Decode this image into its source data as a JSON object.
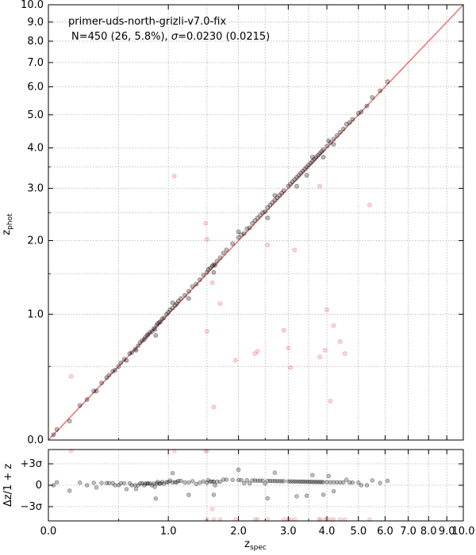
{
  "chart_data": [
    {
      "type": "scatter",
      "annotation": {
        "line1": "primer-uds-north-grizli-v7.0-fix",
        "line2": "N=450 (26,  5.8%), σ=0.0230 (0.0215)"
      },
      "xlabel": {
        "main": "z",
        "sub": "spec"
      },
      "ylabel": {
        "main": "z",
        "sub": "phot"
      },
      "scale": "log(1+z)",
      "xlim": [
        0.0,
        10.0
      ],
      "ylim": [
        0.0,
        10.0
      ],
      "major_ticks": [
        0.0,
        1.0,
        2.0,
        3.0,
        4.0,
        5.0,
        6.0,
        7.0,
        8.0,
        9.0,
        10.0
      ],
      "major_tick_labels": [
        "0.0",
        "1.0",
        "2.0",
        "3.0",
        "4.0",
        "5.0",
        "6.0",
        "7.0",
        "8.0",
        "9.0",
        "10.0"
      ],
      "minor_ticks": [
        0.5,
        1.5,
        2.5,
        3.5
      ],
      "grid": true,
      "one_to_one_line": {
        "color": "#f07070",
        "from": 0.0,
        "to": 10.0
      },
      "series": [
        {
          "marker_color": "#000000",
          "points": [
            [
              0.03,
              0.03
            ],
            [
              0.05,
              0.06
            ],
            [
              0.13,
              0.11
            ],
            [
              0.2,
              0.21
            ],
            [
              0.25,
              0.25
            ],
            [
              0.3,
              0.31
            ],
            [
              0.32,
              0.31
            ],
            [
              0.36,
              0.37
            ],
            [
              0.4,
              0.41
            ],
            [
              0.42,
              0.43
            ],
            [
              0.45,
              0.46
            ],
            [
              0.47,
              0.47
            ],
            [
              0.5,
              0.5
            ],
            [
              0.52,
              0.53
            ],
            [
              0.55,
              0.56
            ],
            [
              0.57,
              0.55
            ],
            [
              0.6,
              0.61
            ],
            [
              0.62,
              0.62
            ],
            [
              0.65,
              0.65
            ],
            [
              0.66,
              0.64
            ],
            [
              0.68,
              0.68
            ],
            [
              0.7,
              0.71
            ],
            [
              0.72,
              0.73
            ],
            [
              0.74,
              0.74
            ],
            [
              0.75,
              0.76
            ],
            [
              0.77,
              0.78
            ],
            [
              0.78,
              0.79
            ],
            [
              0.8,
              0.81
            ],
            [
              0.82,
              0.82
            ],
            [
              0.84,
              0.85
            ],
            [
              0.85,
              0.84
            ],
            [
              0.87,
              0.88
            ],
            [
              0.88,
              0.9
            ],
            [
              0.9,
              0.91
            ],
            [
              0.91,
              0.92
            ],
            [
              0.93,
              0.95
            ],
            [
              0.95,
              0.96
            ],
            [
              0.98,
              1.0
            ],
            [
              1.0,
              1.02
            ],
            [
              1.02,
              1.05
            ],
            [
              1.05,
              1.07
            ],
            [
              1.08,
              1.1
            ],
            [
              1.1,
              1.12
            ],
            [
              1.12,
              1.15
            ],
            [
              1.15,
              1.18
            ],
            [
              1.2,
              1.22
            ],
            [
              1.25,
              1.27
            ],
            [
              1.3,
              1.33
            ],
            [
              1.35,
              1.36
            ],
            [
              1.4,
              1.42
            ],
            [
              1.45,
              1.48
            ],
            [
              1.5,
              1.52
            ],
            [
              1.52,
              1.56
            ],
            [
              1.55,
              1.58
            ],
            [
              1.58,
              1.61
            ],
            [
              1.6,
              1.63
            ],
            [
              1.62,
              1.62
            ],
            [
              1.65,
              1.68
            ],
            [
              1.7,
              1.73
            ],
            [
              1.75,
              1.8
            ],
            [
              1.8,
              1.85
            ],
            [
              1.9,
              1.95
            ],
            [
              2.0,
              2.05
            ],
            [
              2.05,
              2.1
            ],
            [
              2.1,
              2.12
            ],
            [
              2.15,
              2.2
            ],
            [
              2.2,
              2.22
            ],
            [
              2.25,
              2.3
            ],
            [
              2.3,
              2.35
            ],
            [
              2.35,
              2.4
            ],
            [
              2.4,
              2.45
            ],
            [
              2.45,
              2.5
            ],
            [
              2.5,
              2.52
            ],
            [
              2.55,
              2.6
            ],
            [
              2.6,
              2.65
            ],
            [
              2.65,
              2.7
            ],
            [
              2.7,
              2.75
            ],
            [
              2.75,
              2.8
            ],
            [
              2.8,
              2.85
            ],
            [
              2.85,
              2.9
            ],
            [
              2.9,
              2.95
            ],
            [
              3.0,
              3.05
            ],
            [
              3.05,
              3.1
            ],
            [
              3.1,
              3.15
            ],
            [
              3.15,
              3.2
            ],
            [
              3.2,
              3.25
            ],
            [
              3.25,
              3.3
            ],
            [
              3.3,
              3.35
            ],
            [
              3.35,
              3.4
            ],
            [
              3.4,
              3.45
            ],
            [
              3.45,
              3.5
            ],
            [
              3.5,
              3.55
            ],
            [
              3.55,
              3.6
            ],
            [
              3.6,
              3.65
            ],
            [
              3.65,
              3.7
            ],
            [
              3.7,
              3.75
            ],
            [
              3.75,
              3.8
            ],
            [
              3.8,
              3.85
            ],
            [
              3.85,
              3.9
            ],
            [
              3.9,
              3.95
            ],
            [
              4.0,
              4.05
            ],
            [
              4.1,
              4.15
            ],
            [
              4.2,
              4.25
            ],
            [
              4.3,
              4.35
            ],
            [
              4.4,
              4.45
            ],
            [
              4.5,
              4.55
            ],
            [
              4.6,
              4.7
            ],
            [
              4.7,
              4.75
            ],
            [
              4.8,
              4.85
            ],
            [
              5.0,
              5.05
            ],
            [
              5.1,
              5.1
            ],
            [
              5.3,
              5.3
            ],
            [
              5.5,
              5.6
            ],
            [
              5.8,
              5.85
            ],
            [
              6.1,
              6.2
            ],
            [
              0.86,
              0.78
            ],
            [
              1.25,
              1.18
            ],
            [
              1.6,
              1.52
            ],
            [
              2.55,
              2.4
            ],
            [
              3.2,
              3.05
            ],
            [
              3.45,
              3.3
            ],
            [
              3.9,
              3.75
            ],
            [
              4.2,
              4.1
            ],
            [
              1.05,
              1.13
            ],
            [
              2.0,
              2.15
            ],
            [
              2.7,
              2.85
            ],
            [
              3.6,
              3.75
            ],
            [
              4.05,
              4.2
            ]
          ]
        },
        {
          "marker_color": "#f07070",
          "points": [
            [
              0.14,
              0.42
            ],
            [
              1.07,
              3.28
            ],
            [
              1.48,
              2.3
            ],
            [
              1.5,
              2.02
            ],
            [
              1.5,
              0.82
            ],
            [
              1.58,
              1.38
            ],
            [
              1.6,
              0.2
            ],
            [
              1.7,
              1.12
            ],
            [
              1.95,
              0.55
            ],
            [
              2.3,
              0.61
            ],
            [
              2.35,
              0.63
            ],
            [
              2.55,
              1.93
            ],
            [
              2.9,
              0.83
            ],
            [
              3.0,
              0.66
            ],
            [
              3.05,
              0.49
            ],
            [
              3.15,
              1.85
            ],
            [
              3.8,
              3.05
            ],
            [
              3.8,
              0.58
            ],
            [
              3.95,
              0.64
            ],
            [
              4.0,
              1.05
            ],
            [
              4.1,
              0.24
            ],
            [
              4.2,
              0.88
            ],
            [
              4.4,
              0.72
            ],
            [
              4.55,
              0.61
            ],
            [
              5.4,
              2.65
            ]
          ]
        }
      ],
      "residual_panel": {
        "ylabel": "Δz/1 + z",
        "ytick_labels": [
          "+3σ",
          "0",
          "−3σ"
        ],
        "ytick_values": [
          3,
          0,
          -3
        ],
        "ylim": [
          -5,
          5
        ]
      }
    }
  ]
}
